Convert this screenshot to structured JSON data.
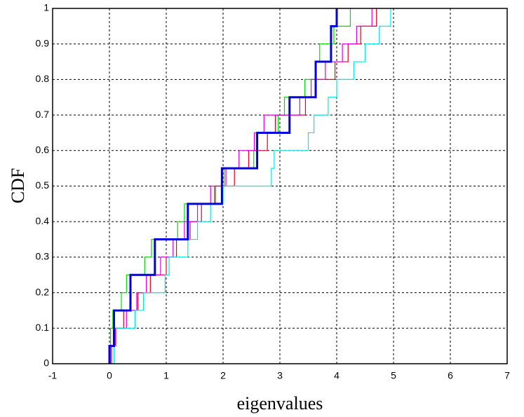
{
  "chart_data": {
    "type": "step",
    "xlabel": "eigenvalues",
    "ylabel": "CDF",
    "xlim": [
      -1,
      7
    ],
    "ylim": [
      0,
      1
    ],
    "xticks": [
      -1,
      0,
      1,
      2,
      3,
      4,
      5,
      6,
      7
    ],
    "yticks": [
      0,
      0.1,
      0.2,
      0.3,
      0.4,
      0.5,
      0.6,
      0.7,
      0.8,
      0.9,
      1
    ],
    "grid": true,
    "series": [
      {
        "color": "#00dd00",
        "width": 1.2,
        "x": [
          0.01,
          0.02,
          0.06,
          0.21,
          0.3,
          0.62,
          0.74,
          1.2,
          1.32,
          1.87,
          2.02,
          2.54,
          2.59,
          2.97,
          3.08,
          3.44,
          3.64,
          3.7,
          3.95,
          4.24
        ],
        "values": [
          0.05,
          0.1,
          0.15,
          0.2,
          0.25,
          0.3,
          0.35,
          0.4,
          0.45,
          0.5,
          0.55,
          0.6,
          0.65,
          0.7,
          0.75,
          0.8,
          0.85,
          0.9,
          0.95,
          1
        ]
      },
      {
        "color": "#e8002a",
        "width": 1.2,
        "x": [
          0.02,
          0.1,
          0.25,
          0.5,
          0.72,
          1.0,
          1.18,
          1.42,
          1.62,
          1.85,
          2.2,
          2.45,
          2.78,
          2.92,
          3.45,
          3.62,
          3.97,
          4.2,
          4.42,
          4.7
        ],
        "values": [
          0.05,
          0.1,
          0.15,
          0.2,
          0.25,
          0.3,
          0.35,
          0.4,
          0.45,
          0.5,
          0.55,
          0.6,
          0.65,
          0.7,
          0.75,
          0.8,
          0.85,
          0.9,
          0.95,
          1
        ]
      },
      {
        "color": "#e000e0",
        "width": 1.2,
        "x": [
          0.04,
          0.11,
          0.3,
          0.48,
          0.65,
          0.9,
          1.12,
          1.32,
          1.55,
          1.78,
          2.05,
          2.28,
          2.55,
          2.72,
          3.35,
          3.55,
          3.8,
          4.1,
          4.35,
          4.62
        ],
        "values": [
          0.05,
          0.1,
          0.15,
          0.2,
          0.25,
          0.3,
          0.35,
          0.4,
          0.45,
          0.5,
          0.55,
          0.6,
          0.65,
          0.7,
          0.75,
          0.8,
          0.85,
          0.9,
          0.95,
          1
        ]
      },
      {
        "color": "#00e8e8",
        "width": 1.2,
        "x": [
          0.08,
          0.12,
          0.45,
          0.6,
          0.98,
          1.05,
          1.38,
          1.55,
          1.78,
          2.0,
          2.85,
          2.9,
          3.5,
          3.6,
          3.85,
          4.0,
          4.3,
          4.5,
          4.75,
          4.95
        ],
        "values": [
          0.05,
          0.1,
          0.15,
          0.2,
          0.25,
          0.3,
          0.35,
          0.4,
          0.45,
          0.5,
          0.55,
          0.6,
          0.65,
          0.7,
          0.75,
          0.8,
          0.85,
          0.9,
          0.95,
          1
        ]
      },
      {
        "color": "#0000e0",
        "width": 3,
        "x": [
          0,
          0.08,
          0.37,
          0.8,
          1.38,
          1.98,
          2.6,
          3.17,
          3.63,
          3.9,
          4.0
        ],
        "values": [
          0.05,
          0.15,
          0.25,
          0.35,
          0.45,
          0.55,
          0.65,
          0.75,
          0.85,
          0.95,
          1
        ]
      }
    ]
  }
}
